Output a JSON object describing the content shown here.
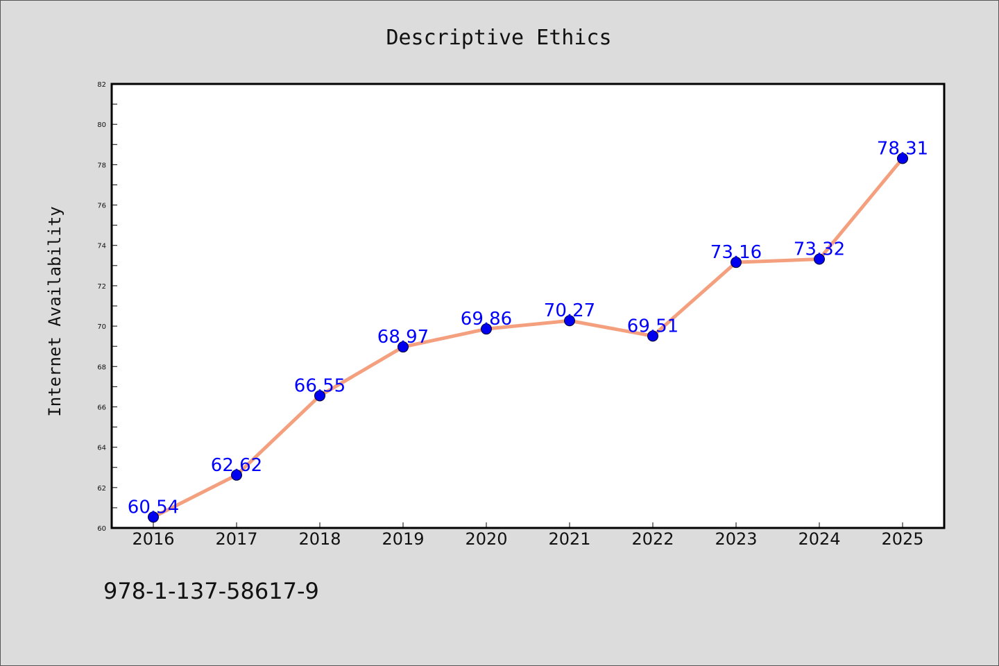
{
  "chart_data": {
    "type": "line",
    "title": "Descriptive Ethics",
    "xlabel": "",
    "ylabel": "Internet Availability",
    "categories": [
      "2016",
      "2017",
      "2018",
      "2019",
      "2020",
      "2021",
      "2022",
      "2023",
      "2024",
      "2025"
    ],
    "series": [
      {
        "values": [
          60.54,
          62.62,
          66.55,
          68.97,
          69.86,
          70.27,
          69.51,
          73.16,
          73.32,
          78.31
        ],
        "data_labels": [
          "60.54",
          "62.62",
          "66.55",
          "68.97",
          "69.86",
          "70.27",
          "69.51",
          "73.16",
          "73.32",
          "78.31"
        ]
      }
    ],
    "ylim": [
      60,
      82
    ],
    "yticks": [
      "60",
      "62",
      "64",
      "66",
      "68",
      "70",
      "72",
      "74",
      "76",
      "78",
      "80",
      "82"
    ],
    "grid": false,
    "colors": {
      "line": "#f4a07e",
      "marker": "#0000ee",
      "label": "#0000ff"
    }
  },
  "footer": {
    "isbn": "978-1-137-58617-9"
  }
}
